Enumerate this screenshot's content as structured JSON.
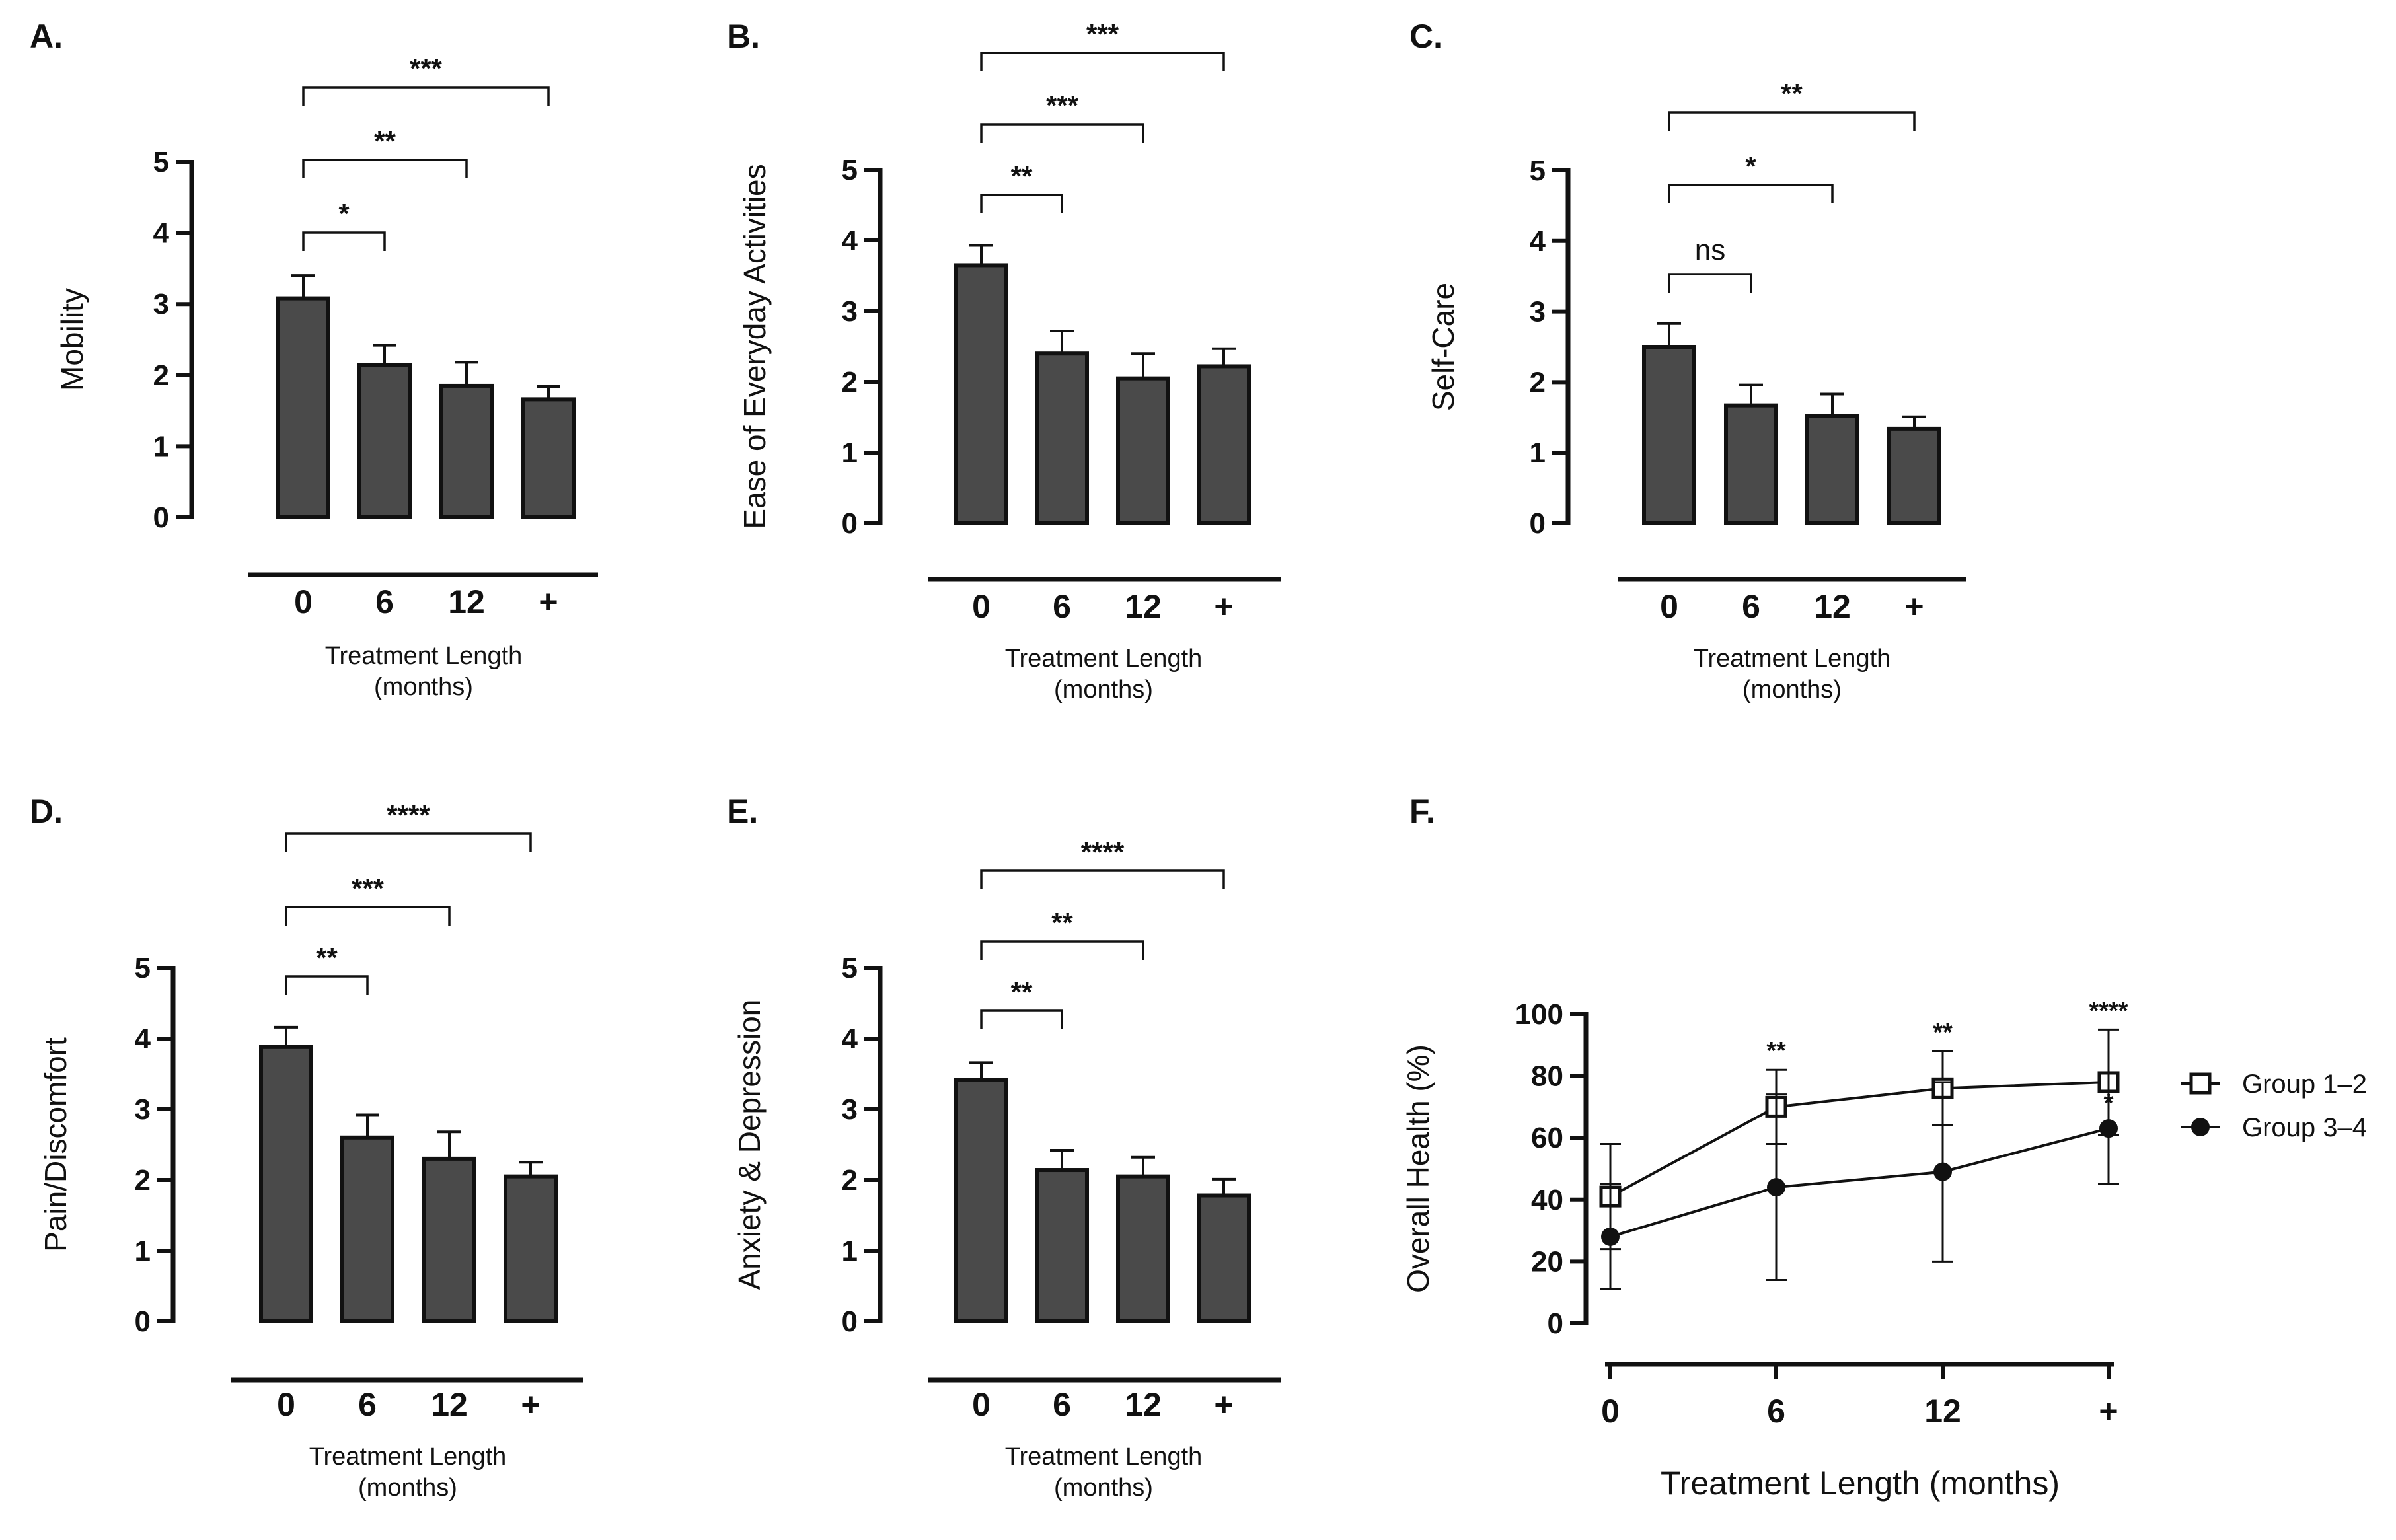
{
  "figure": {
    "panels": [
      {
        "letter": "A.",
        "ylabel": "Mobility",
        "xlabel": [
          "Treatment Length",
          "(months)"
        ],
        "yticks": [
          "0",
          "1",
          "2",
          "3",
          "4",
          "5"
        ],
        "sig": [
          "*",
          "**",
          "***"
        ]
      },
      {
        "letter": "B.",
        "ylabel": "Ease of Everyday Activities",
        "xlabel": [
          "Treatment Length",
          "(months)"
        ],
        "yticks": [
          "0",
          "1",
          "2",
          "3",
          "4",
          "5"
        ],
        "sig": [
          "**",
          "***",
          "***"
        ]
      },
      {
        "letter": "C.",
        "ylabel": "Self-Care",
        "xlabel": [
          "Treatment Length",
          "(months)"
        ],
        "yticks": [
          "0",
          "1",
          "2",
          "3",
          "4",
          "5"
        ],
        "sig": [
          "ns",
          "*",
          "**"
        ]
      },
      {
        "letter": "D.",
        "ylabel": "Pain/Discomfort",
        "xlabel": [
          "Treatment Length",
          "(months)"
        ],
        "yticks": [
          "0",
          "1",
          "2",
          "3",
          "4",
          "5"
        ],
        "sig": [
          "**",
          "***",
          "****"
        ]
      },
      {
        "letter": "E.",
        "ylabel": "Anxiety & Depression",
        "xlabel": [
          "Treatment Length",
          "(months)"
        ],
        "yticks": [
          "0",
          "1",
          "2",
          "3",
          "4",
          "5"
        ],
        "sig": [
          "**",
          "**",
          "****"
        ]
      },
      {
        "letter": "F.",
        "ylabel": "Overall Health (%)",
        "xlabel": "Treatment Length (months)",
        "yticks": [
          "0",
          "20",
          "40",
          "60",
          "80",
          "100"
        ]
      }
    ]
  },
  "colors": {
    "bar_fill": "#4a4a4a",
    "ink": "#111111"
  },
  "chart_data": [
    {
      "panel": "A.",
      "type": "bar",
      "categories": [
        "0",
        "6",
        "12",
        "+"
      ],
      "values": [
        3.08,
        2.14,
        1.85,
        1.66
      ],
      "errors": [
        0.32,
        0.28,
        0.33,
        0.18
      ],
      "ylabel": "Mobility",
      "xlabel": "Treatment Length (months)",
      "ylim": [
        0,
        5
      ],
      "comparisons": [
        {
          "from": "0",
          "to": "6",
          "label": "*"
        },
        {
          "from": "0",
          "to": "12",
          "label": "**"
        },
        {
          "from": "0",
          "to": "+",
          "label": "***"
        }
      ]
    },
    {
      "panel": "B.",
      "type": "bar",
      "categories": [
        "0",
        "6",
        "12",
        "+"
      ],
      "values": [
        3.65,
        2.4,
        2.05,
        2.22
      ],
      "errors": [
        0.28,
        0.32,
        0.35,
        0.25
      ],
      "ylabel": "Ease of Everyday Activities",
      "xlabel": "Treatment Length (months)",
      "ylim": [
        0,
        5
      ],
      "comparisons": [
        {
          "from": "0",
          "to": "6",
          "label": "**"
        },
        {
          "from": "0",
          "to": "12",
          "label": "***"
        },
        {
          "from": "0",
          "to": "+",
          "label": "***"
        }
      ]
    },
    {
      "panel": "C.",
      "type": "bar",
      "categories": [
        "0",
        "6",
        "12",
        "+"
      ],
      "values": [
        2.5,
        1.67,
        1.52,
        1.34
      ],
      "errors": [
        0.33,
        0.29,
        0.31,
        0.17
      ],
      "ylabel": "Self-Care",
      "xlabel": "Treatment Length (months)",
      "ylim": [
        0,
        5
      ],
      "comparisons": [
        {
          "from": "0",
          "to": "6",
          "label": "ns"
        },
        {
          "from": "0",
          "to": "12",
          "label": "*"
        },
        {
          "from": "0",
          "to": "+",
          "label": "**"
        }
      ]
    },
    {
      "panel": "D.",
      "type": "bar",
      "categories": [
        "0",
        "6",
        "12",
        "+"
      ],
      "values": [
        3.88,
        2.6,
        2.3,
        2.05
      ],
      "errors": [
        0.28,
        0.32,
        0.38,
        0.2
      ],
      "ylabel": "Pain/Discomfort",
      "xlabel": "Treatment Length (months)",
      "ylim": [
        0,
        5
      ],
      "comparisons": [
        {
          "from": "0",
          "to": "6",
          "label": "**"
        },
        {
          "from": "0",
          "to": "12",
          "label": "***"
        },
        {
          "from": "0",
          "to": "+",
          "label": "****"
        }
      ]
    },
    {
      "panel": "E.",
      "type": "bar",
      "categories": [
        "0",
        "6",
        "12",
        "+"
      ],
      "values": [
        3.42,
        2.14,
        2.05,
        1.78
      ],
      "errors": [
        0.24,
        0.28,
        0.27,
        0.23
      ],
      "ylabel": "Anxiety & Depression",
      "xlabel": "Treatment Length (months)",
      "ylim": [
        0,
        5
      ],
      "comparisons": [
        {
          "from": "0",
          "to": "6",
          "label": "**"
        },
        {
          "from": "0",
          "to": "12",
          "label": "**"
        },
        {
          "from": "0",
          "to": "+",
          "label": "****"
        }
      ]
    },
    {
      "panel": "F.",
      "type": "line",
      "categories": [
        "0",
        "6",
        "12",
        "+"
      ],
      "ylabel": "Overall Health (%)",
      "xlabel": "Treatment Length (months)",
      "ylim": [
        0,
        100
      ],
      "legend": "right",
      "series": [
        {
          "name": "Group 1–2",
          "marker": "open-square",
          "values": [
            41,
            70,
            76,
            78
          ],
          "errors": [
            17,
            12,
            12,
            17
          ],
          "annotations": [
            "",
            "**",
            "**",
            "****"
          ]
        },
        {
          "name": "Group 3–4",
          "marker": "filled-circle",
          "values": [
            28,
            44,
            49,
            63
          ],
          "errors": [
            17,
            30,
            29,
            18
          ],
          "annotations": [
            "",
            "",
            "",
            "*"
          ]
        }
      ]
    }
  ]
}
